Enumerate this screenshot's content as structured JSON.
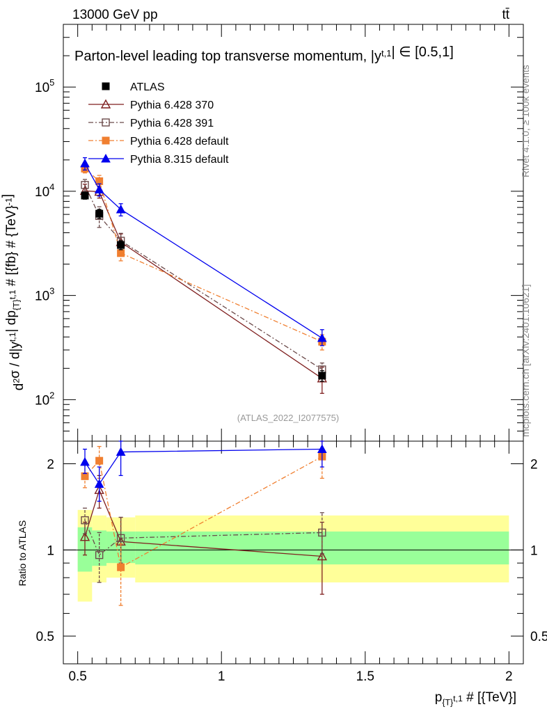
{
  "header": {
    "energy_label": "13000 GeV pp",
    "process_label": "tt̄"
  },
  "side_labels": {
    "rivet": "Rivet 4.1.0, ≥ 100k events",
    "mcplots": "mcplots.cern.ch [arXiv:2401.10621]"
  },
  "chart_data": [
    {
      "id": "main",
      "type": "line",
      "title": "Parton-level leading top transverse momentum, |y",
      "title_sup": "t,1",
      "title_tail": "| ∈ [0.5,1]",
      "ylabel_parts": [
        "d",
        "2",
        "σ / d|y",
        "t,1",
        "| dp",
        "{T}",
        "t,1",
        " # [{fb} # {TeV}",
        "-1",
        "]"
      ],
      "yscale": "log",
      "ylim": [
        40,
        400000
      ],
      "xlim": [
        0.45,
        2.05
      ],
      "ytick_labels": [
        "10",
        "10",
        "10",
        "10"
      ],
      "ytick_exponents": [
        "2",
        "3",
        "4",
        "5"
      ],
      "ytick_values": [
        100,
        1000,
        10000,
        100000
      ],
      "watermark": "(ATLAS_2022_I2077575)",
      "series": [
        {
          "name": "ATLAS",
          "color": "#000000",
          "marker": "square-filled",
          "line": "none",
          "x": [
            0.525,
            0.575,
            0.65,
            1.35
          ],
          "y": [
            9100,
            6100,
            3050,
            170
          ],
          "yerr": [
            [
              8400,
              9800
            ],
            [
              5500,
              6700
            ],
            [
              2750,
              3350
            ],
            [
              150,
              190
            ]
          ]
        },
        {
          "name": "Pythia 6.428 370",
          "color": "#7f1f1f",
          "marker": "triangle-open",
          "line": "solid",
          "x": [
            0.525,
            0.575,
            0.65,
            1.35
          ],
          "y": [
            10100,
            9900,
            3250,
            160
          ],
          "yerr": [
            [
              8500,
              11700
            ],
            [
              8600,
              11200
            ],
            [
              2600,
              3900
            ],
            [
              115,
              205
            ]
          ]
        },
        {
          "name": "Pythia 6.428 391",
          "color": "#6b4a4a",
          "marker": "square-open",
          "line": "dashdot",
          "x": [
            0.525,
            0.575,
            0.65,
            1.35
          ],
          "y": [
            11500,
            5800,
            3350,
            195
          ],
          "yerr": [
            [
              10000,
              13000
            ],
            [
              4500,
              7100
            ],
            [
              2750,
              3950
            ],
            [
              165,
              225
            ]
          ]
        },
        {
          "name": "Pythia 6.428 default",
          "color": "#f07f30",
          "marker": "square-filled",
          "line": "dashdot",
          "x": [
            0.525,
            0.575,
            0.65,
            1.35
          ],
          "y": [
            16500,
            12500,
            2550,
            360
          ],
          "yerr": [
            [
              15000,
              18000
            ],
            [
              10800,
              14200
            ],
            [
              2150,
              2950
            ],
            [
              300,
              420
            ]
          ]
        },
        {
          "name": "Pythia 8.315 default",
          "color": "#0000ee",
          "marker": "triangle-filled",
          "line": "solid",
          "x": [
            0.525,
            0.575,
            0.65,
            1.35
          ],
          "y": [
            18500,
            10400,
            6700,
            390
          ],
          "yerr": [
            [
              16000,
              21000
            ],
            [
              9000,
              11800
            ],
            [
              5800,
              7600
            ],
            [
              330,
              470
            ]
          ]
        }
      ]
    },
    {
      "id": "ratio",
      "type": "line",
      "ylabel": "Ratio to ATLAS",
      "yscale": "log",
      "ylim": [
        0.4,
        2.4
      ],
      "xlim": [
        0.45,
        2.05
      ],
      "ytick_values": [
        0.5,
        1,
        2
      ],
      "ytick_labels": [
        "0.5",
        "1",
        "2"
      ],
      "xtick_values": [
        0.5,
        1,
        1.5,
        2
      ],
      "xtick_labels": [
        "0.5",
        "1",
        "1.5",
        "2"
      ],
      "xlabel_parts": [
        "p",
        "{T}",
        "t,1",
        " # [{TeV}]"
      ],
      "bands": {
        "bins": [
          [
            0.5,
            0.55
          ],
          [
            0.55,
            0.6
          ],
          [
            0.6,
            0.7
          ],
          [
            0.7,
            2.0
          ]
        ],
        "outer": [
          [
            0.66,
            1.38
          ],
          [
            0.77,
            1.32
          ],
          [
            0.8,
            1.3
          ],
          [
            0.77,
            1.32
          ]
        ],
        "inner": [
          [
            0.84,
            1.2
          ],
          [
            0.88,
            1.17
          ],
          [
            0.9,
            1.16
          ],
          [
            0.89,
            1.16
          ]
        ],
        "outer_color": "#ffff99",
        "inner_color": "#99ff99"
      },
      "series": [
        {
          "name": "Pythia 6.428 370",
          "color": "#7f1f1f",
          "marker": "triangle-open",
          "line": "solid",
          "x": [
            0.525,
            0.575,
            0.65,
            1.35
          ],
          "y": [
            1.11,
            1.62,
            1.07,
            0.95
          ],
          "yerr": [
            [
              0.96,
              1.25
            ],
            [
              1.4,
              1.82
            ],
            [
              0.87,
              1.3
            ],
            [
              0.7,
              1.25
            ]
          ]
        },
        {
          "name": "Pythia 6.428 391",
          "color": "#6b4a4a",
          "marker": "square-open",
          "line": "dashdot",
          "x": [
            0.525,
            0.575,
            0.65,
            1.35
          ],
          "y": [
            1.27,
            0.96,
            1.1,
            1.15
          ],
          "yerr": [
            [
              1.14,
              1.4
            ],
            [
              0.77,
              1.15
            ],
            [
              0.9,
              1.3
            ],
            [
              0.97,
              1.35
            ]
          ]
        },
        {
          "name": "Pythia 6.428 default",
          "color": "#f07f30",
          "marker": "square-filled",
          "line": "dashdot",
          "x": [
            0.525,
            0.575,
            0.65,
            1.35
          ],
          "y": [
            1.81,
            2.05,
            0.87,
            2.12
          ],
          "yerr": [
            [
              1.65,
              1.98
            ],
            [
              1.78,
              2.3
            ],
            [
              0.64,
              1.05
            ],
            [
              1.78,
              2.4
            ]
          ]
        },
        {
          "name": "Pythia 8.315 default",
          "color": "#0000ee",
          "marker": "triangle-filled",
          "line": "solid",
          "x": [
            0.525,
            0.575,
            0.65,
            1.35
          ],
          "y": [
            2.03,
            1.7,
            2.2,
            2.25
          ],
          "yerr": [
            [
              1.85,
              2.25
            ],
            [
              1.48,
              1.95
            ],
            [
              1.82,
              2.4
            ],
            [
              1.95,
              2.45
            ]
          ]
        }
      ]
    }
  ]
}
